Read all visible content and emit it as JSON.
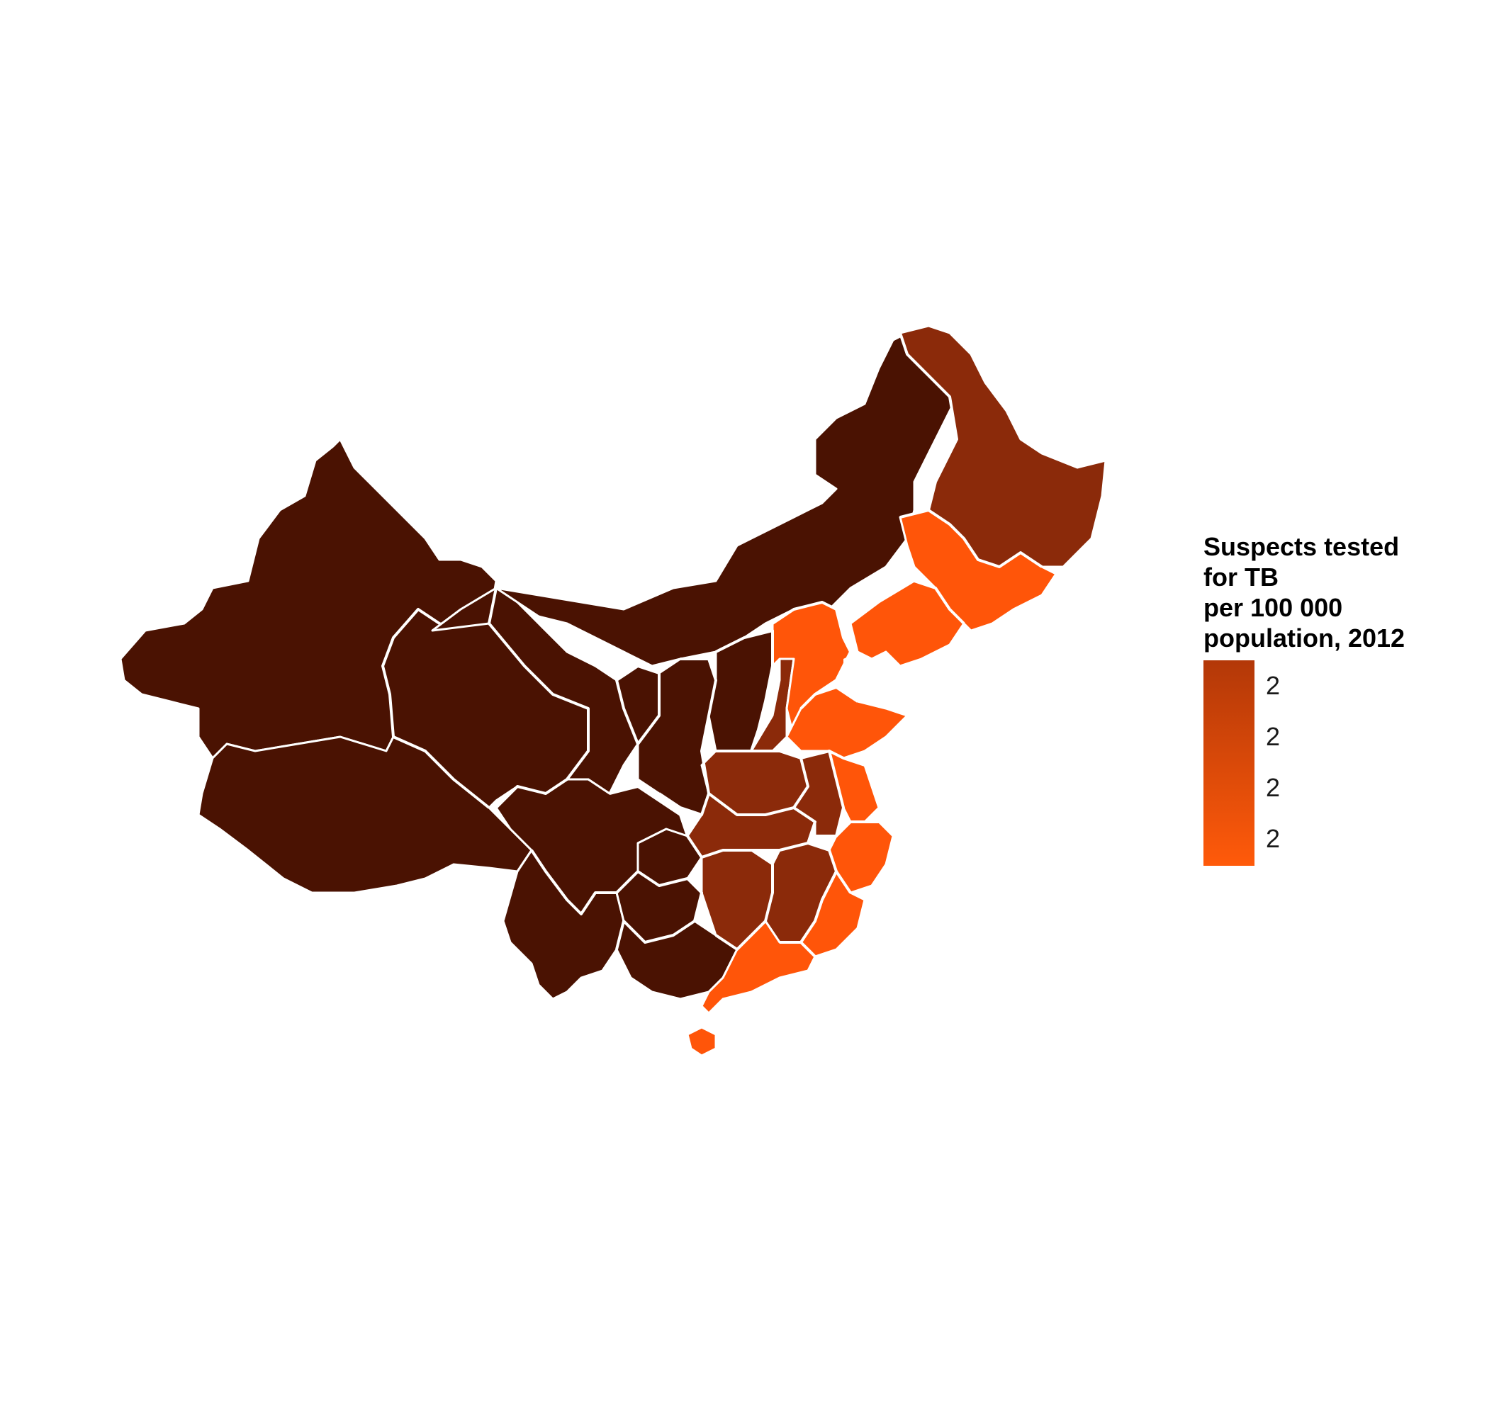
{
  "colors": {
    "background": "#ffffff",
    "border": "#ffffff",
    "dark": "#4a1202",
    "medium": "#8b2a0a",
    "bright": "#ff5509",
    "legend_top": "#b33808",
    "legend_bottom": "#ff5a0a"
  },
  "legend": {
    "title_lines": [
      "Suspects tested",
      "for TB",
      "per 100 000",
      "population, 2012"
    ],
    "labels": [
      "2",
      "2",
      "2",
      "2"
    ]
  }
}
